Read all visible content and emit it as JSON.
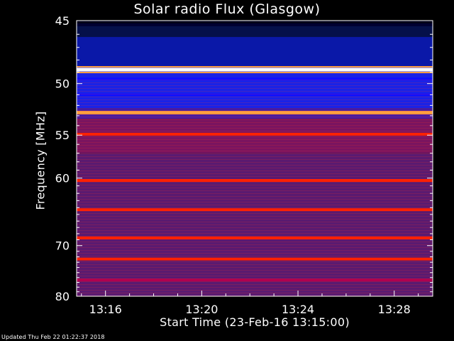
{
  "chart_data": {
    "type": "heatmap",
    "title": "Solar radio Flux (Glasgow)",
    "xlabel": "Start Time (23-Feb-16 13:15:00)",
    "ylabel": "Frequency [MHz]",
    "x_ticks": [
      "13:16",
      "13:20",
      "13:24",
      "13:28"
    ],
    "x_tick_minutes": [
      16,
      20,
      24,
      28
    ],
    "x_range_minutes": [
      14.8,
      29.6
    ],
    "y_ticks": [
      45,
      50,
      55,
      60,
      70,
      80
    ],
    "y_range_mhz": [
      45,
      80
    ],
    "y_scale": "reciprocal",
    "colormap": [
      "#000030",
      "#1010ff",
      "#b00050",
      "#ff2000",
      "#ffa040",
      "#ffffff"
    ],
    "bands_mhz": [
      {
        "f": 45.3,
        "level": 0.18
      },
      {
        "f": 48.8,
        "level": 1.0
      },
      {
        "f": 49.6,
        "level": 0.3
      },
      {
        "f": 51.0,
        "level": 0.28
      },
      {
        "f": 52.7,
        "level": 0.85
      },
      {
        "f": 54.9,
        "level": 0.62
      },
      {
        "f": 60.3,
        "level": 0.6
      },
      {
        "f": 64.3,
        "level": 0.66
      },
      {
        "f": 68.7,
        "level": 0.62
      },
      {
        "f": 72.4,
        "level": 0.62
      },
      {
        "f": 76.5,
        "level": 0.5
      }
    ]
  },
  "footer": "Updated Thu Feb 22 01:22:37 2018"
}
